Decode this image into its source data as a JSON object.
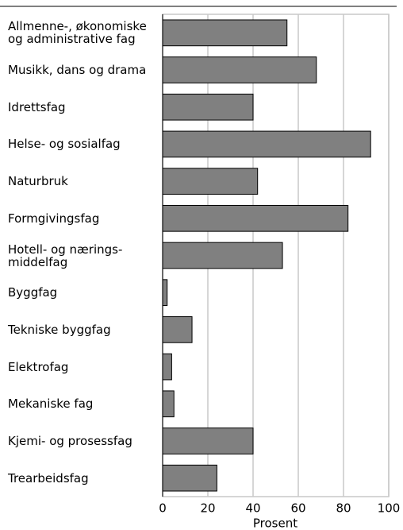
{
  "chart_data": {
    "type": "bar",
    "orientation": "horizontal",
    "categories": [
      "Allmenne-, økonomiske\nog administrative fag",
      "Musikk, dans og drama",
      "Idrettsfag",
      "Helse- og sosialfag",
      "Naturbruk",
      "Formgivingsfag",
      "Hotell- og nærings-\nmiddelfag",
      "Byggfag",
      "Tekniske byggfag",
      "Elektrofag",
      "Mekaniske fag",
      "Kjemi- og prosessfag",
      "Trearbeidsfag"
    ],
    "values": [
      55,
      68,
      40,
      92,
      42,
      82,
      53,
      2,
      13,
      4,
      5,
      40,
      24
    ],
    "color": "#808080",
    "xlabel": "Prosent",
    "xlim": [
      0,
      100
    ],
    "xticks": [
      0,
      20,
      40,
      60,
      80,
      100
    ],
    "grid": true
  }
}
